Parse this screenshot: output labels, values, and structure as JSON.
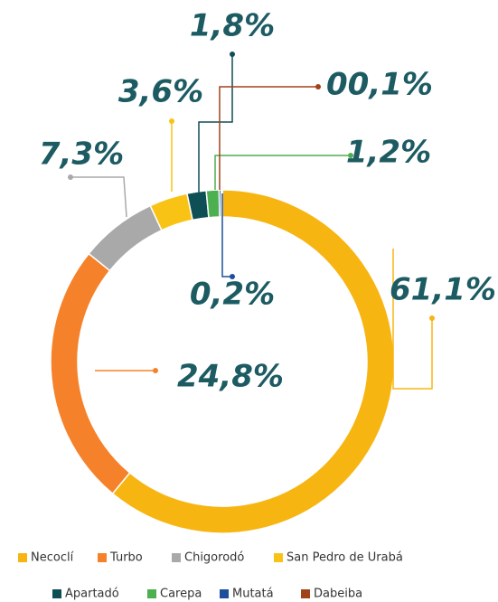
{
  "chart_data": {
    "type": "donut",
    "categories": [
      "Necoclí",
      "Turbo",
      "Chigorodó",
      "San Pedro de Urabá",
      "Apartadó",
      "Carepa",
      "Mutatá",
      "Dabeiba"
    ],
    "values": [
      61.1,
      24.8,
      7.3,
      3.6,
      1.8,
      1.2,
      0.2,
      0.1
    ],
    "value_labels": [
      "61,1%",
      "24,8%",
      "7,3%",
      "3,6%",
      "1,8%",
      "1,2%",
      "0,2%",
      "00,1%"
    ],
    "colors": [
      "#f7b512",
      "#f5822a",
      "#a9a9a9",
      "#f9c315",
      "#0e4f55",
      "#4caf50",
      "#1e4f9c",
      "#a0431a"
    ]
  }
}
